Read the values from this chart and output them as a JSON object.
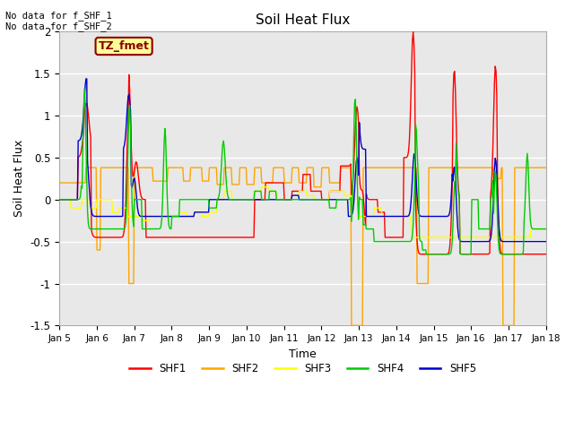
{
  "title": "Soil Heat Flux",
  "xlabel": "Time",
  "ylabel": "Soil Heat Flux",
  "xlim_days": [
    5,
    18
  ],
  "ylim": [
    -1.5,
    2.0
  ],
  "yticks": [
    -1.5,
    -1.0,
    -0.5,
    0.0,
    0.5,
    1.0,
    1.5,
    2.0
  ],
  "xtick_labels": [
    "Jan 5",
    "Jan 6",
    "Jan 7",
    "Jan 8",
    "Jan 9",
    "Jan 10",
    "Jan 11",
    "Jan 12",
    "Jan 13",
    "Jan 14",
    "Jan 15",
    "Jan 16",
    "Jan 17",
    "Jan 18"
  ],
  "annotation_text": "No data for f_SHF_1\nNo data for f_SHF_2",
  "legend_box_text": "TZ_fmet",
  "legend_box_color": "#ffff99",
  "legend_box_edge": "#8B0000",
  "legend_box_text_color": "#8B0000",
  "colors": {
    "SHF1": "#ff0000",
    "SHF2": "#ffa500",
    "SHF3": "#ffff00",
    "SHF4": "#00cc00",
    "SHF5": "#0000cc"
  },
  "axes_bg": "#e8e8e8",
  "grid_color": "#ffffff"
}
